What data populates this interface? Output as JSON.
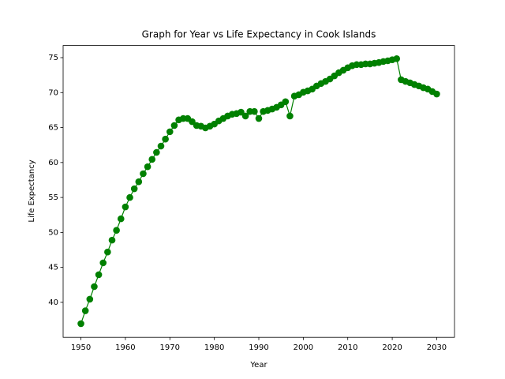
{
  "chart_data": {
    "type": "line",
    "title": "Graph for Year vs Life Expectancy in Cook Islands",
    "x_label": "Year",
    "y_label": "Life Expectancy",
    "x": [
      1950,
      1951,
      1952,
      1953,
      1954,
      1955,
      1956,
      1957,
      1958,
      1959,
      1960,
      1961,
      1962,
      1963,
      1964,
      1965,
      1966,
      1967,
      1968,
      1969,
      1970,
      1971,
      1972,
      1973,
      1974,
      1975,
      1976,
      1977,
      1978,
      1979,
      1980,
      1981,
      1982,
      1983,
      1984,
      1985,
      1986,
      1987,
      1988,
      1989,
      1990,
      1991,
      1992,
      1993,
      1994,
      1995,
      1996,
      1997,
      1998,
      1999,
      2000,
      2001,
      2002,
      2003,
      2004,
      2005,
      2006,
      2007,
      2008,
      2009,
      2010,
      2011,
      2012,
      2013,
      2014,
      2015,
      2016,
      2017,
      2018,
      2019,
      2020,
      2021,
      2022,
      2023,
      2024,
      2025,
      2026,
      2027,
      2028,
      2029,
      2030
    ],
    "series": [
      {
        "name": "Life Expectancy",
        "color": "#008000",
        "values": [
          36.95,
          38.8,
          40.45,
          42.25,
          43.95,
          45.65,
          47.2,
          48.9,
          50.3,
          51.95,
          53.65,
          55.0,
          56.25,
          57.25,
          58.4,
          59.4,
          60.45,
          61.45,
          62.35,
          63.35,
          64.4,
          65.3,
          66.1,
          66.3,
          66.3,
          65.85,
          65.3,
          65.2,
          64.95,
          65.2,
          65.5,
          65.95,
          66.3,
          66.65,
          66.9,
          67.0,
          67.2,
          66.65,
          67.3,
          67.3,
          66.3,
          67.3,
          67.45,
          67.65,
          67.9,
          68.25,
          68.7,
          66.65,
          69.5,
          69.7,
          70.05,
          70.25,
          70.5,
          70.95,
          71.3,
          71.6,
          71.95,
          72.4,
          72.85,
          73.2,
          73.55,
          73.85,
          74.0,
          74.0,
          74.1,
          74.1,
          74.2,
          74.3,
          74.45,
          74.55,
          74.7,
          74.85,
          71.85,
          71.6,
          71.4,
          71.15,
          70.95,
          70.7,
          70.5,
          70.15,
          69.8
        ]
      }
    ],
    "xlim": [
      1946,
      2034
    ],
    "ylim": [
      35.0,
      76.74
    ],
    "xticks": [
      1950,
      1960,
      1970,
      1980,
      1990,
      2000,
      2010,
      2020,
      2030
    ],
    "yticks": [
      40,
      45,
      50,
      55,
      60,
      65,
      70,
      75
    ]
  }
}
